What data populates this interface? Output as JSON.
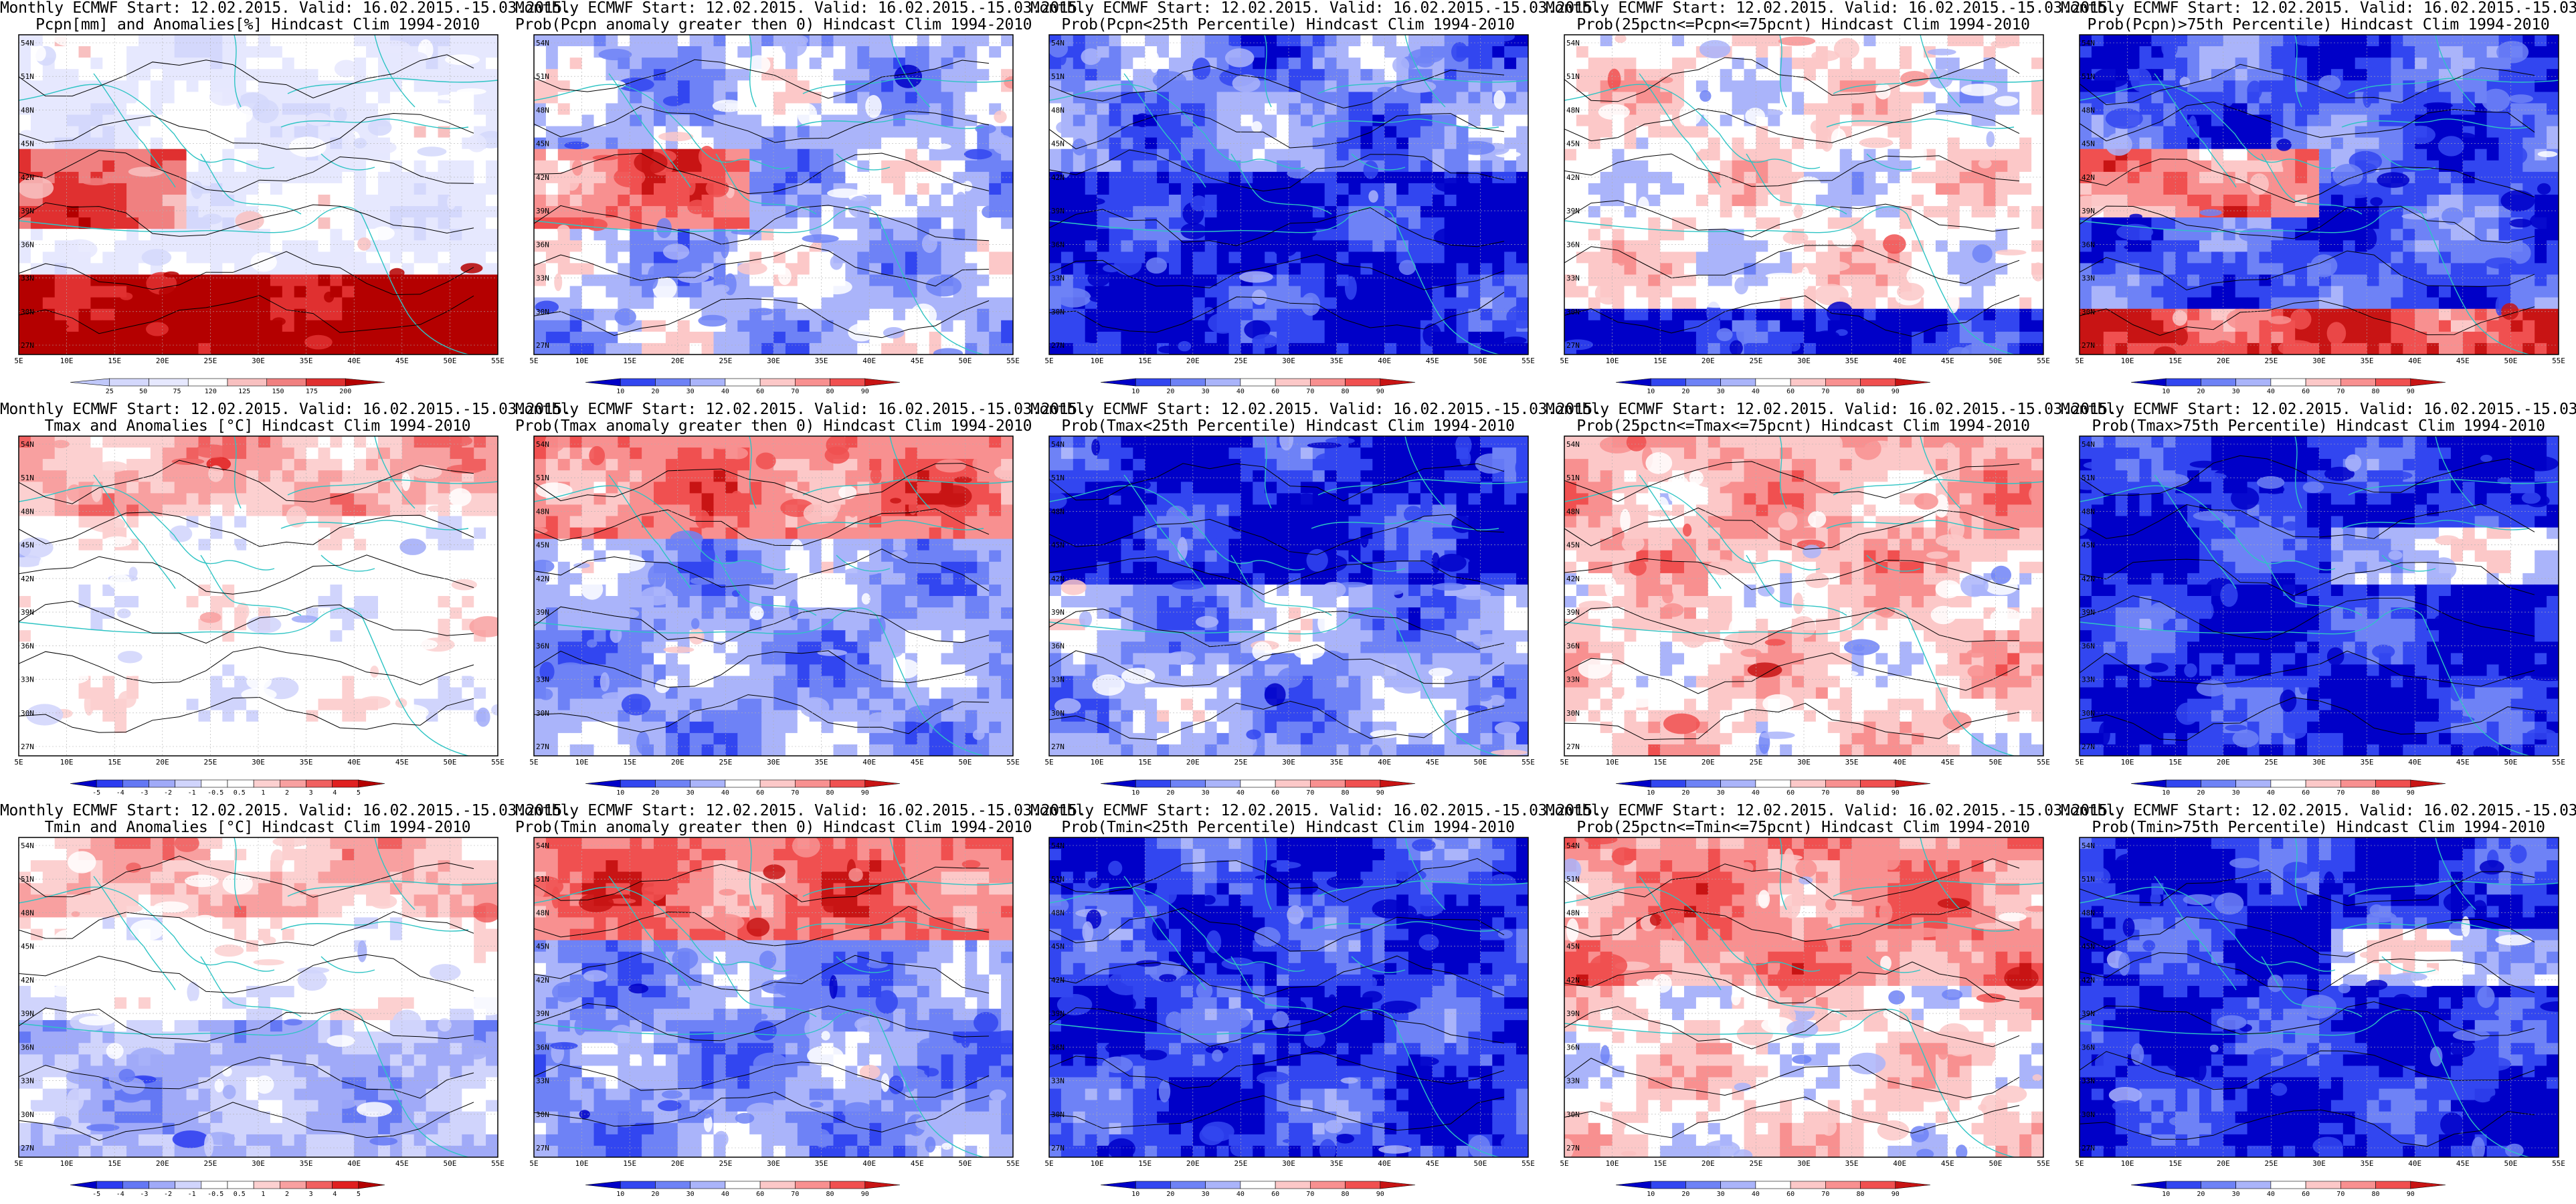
{
  "figure": {
    "header": "Monthly ECMWF Start: 12.02.2015. Valid: 16.02.2015.-15.03.2015.",
    "rows": [
      {
        "variable": "Pcpn",
        "panels": [
          {
            "title": "Pcpn[mm] and Anomalies[%] Hindcast Clim 1994-2010",
            "palette": "pcpn_anom",
            "colorbar": [
              "25",
              "50",
              "75",
              "120",
              "125",
              "150",
              "175",
              "200"
            ]
          },
          {
            "title": "Prob(Pcpn anomaly greater then 0) Hindcast Clim 1994-2010",
            "palette": "prob_pcpn_gt0",
            "colorbar": [
              "10",
              "20",
              "30",
              "40",
              "60",
              "70",
              "80",
              "90"
            ]
          },
          {
            "title": "Prob(Pcpn<25th Percentile) Hindcast Clim 1994-2010",
            "palette": "prob_low",
            "colorbar": [
              "10",
              "20",
              "30",
              "40",
              "60",
              "70",
              "80",
              "90"
            ]
          },
          {
            "title": "Prob(25pctn<=Pcpn<=75pcnt) Hindcast Clim 1994-2010",
            "palette": "prob_mid",
            "colorbar": [
              "10",
              "20",
              "30",
              "40",
              "60",
              "70",
              "80",
              "90"
            ]
          },
          {
            "title": "Prob(Pcpn)>75th Percentile) Hindcast Clim 1994-2010",
            "palette": "prob_high",
            "colorbar": [
              "10",
              "20",
              "30",
              "40",
              "60",
              "70",
              "80",
              "90"
            ]
          }
        ]
      },
      {
        "variable": "Tmax",
        "panels": [
          {
            "title": "Tmax and Anomalies [°C] Hindcast Clim 1994-2010",
            "palette": "t_anom",
            "colorbar": [
              "-5",
              "-4",
              "-3",
              "-2",
              "-1",
              "-0.5",
              "0.5",
              "1",
              "2",
              "3",
              "4",
              "5"
            ]
          },
          {
            "title": "Prob(Tmax anomaly greater then 0) Hindcast Clim 1994-2010",
            "palette": "prob_t_gt0",
            "colorbar": [
              "10",
              "20",
              "30",
              "40",
              "60",
              "70",
              "80",
              "90"
            ]
          },
          {
            "title": "Prob(Tmax<25th Percentile) Hindcast Clim 1994-2010",
            "palette": "prob_low",
            "colorbar": [
              "10",
              "20",
              "30",
              "40",
              "60",
              "70",
              "80",
              "90"
            ]
          },
          {
            "title": "Prob(25pctn<=Tmax<=75pcnt) Hindcast Clim 1994-2010",
            "palette": "prob_mid",
            "colorbar": [
              "10",
              "20",
              "30",
              "40",
              "60",
              "70",
              "80",
              "90"
            ]
          },
          {
            "title": "Prob(Tmax>75th Percentile) Hindcast Clim 1994-2010",
            "palette": "prob_high",
            "colorbar": [
              "10",
              "20",
              "30",
              "40",
              "60",
              "70",
              "80",
              "90"
            ]
          }
        ]
      },
      {
        "variable": "Tmin",
        "panels": [
          {
            "title": "Tmin and Anomalies [°C] Hindcast Clim 1994-2010",
            "palette": "t_anom",
            "colorbar": [
              "-5",
              "-4",
              "-3",
              "-2",
              "-1",
              "-0.5",
              "0.5",
              "1",
              "2",
              "3",
              "4",
              "5"
            ]
          },
          {
            "title": "Prob(Tmin anomaly greater then 0) Hindcast Clim 1994-2010",
            "palette": "prob_t_gt0",
            "colorbar": [
              "10",
              "20",
              "30",
              "40",
              "60",
              "70",
              "80",
              "90"
            ]
          },
          {
            "title": "Prob(Tmin<25th Percentile) Hindcast Clim 1994-2010",
            "palette": "prob_low",
            "colorbar": [
              "10",
              "20",
              "30",
              "40",
              "60",
              "70",
              "80",
              "90"
            ]
          },
          {
            "title": "Prob(25pctn<=Tmin<=75pcnt) Hindcast Clim 1994-2010",
            "palette": "prob_mid",
            "colorbar": [
              "10",
              "20",
              "30",
              "40",
              "60",
              "70",
              "80",
              "90"
            ]
          },
          {
            "title": "Prob(Tmin>75th Percentile) Hindcast Clim 1994-2010",
            "palette": "prob_high",
            "colorbar": [
              "10",
              "20",
              "30",
              "40",
              "60",
              "70",
              "80",
              "90"
            ]
          }
        ]
      }
    ],
    "lon_ticks": [
      "5E",
      "10E",
      "15E",
      "20E",
      "25E",
      "30E",
      "35E",
      "40E",
      "45E",
      "50E",
      "55E"
    ],
    "lat_ticks": [
      "27N",
      "30N",
      "33N",
      "36N",
      "39N",
      "42N",
      "45N",
      "48N",
      "51N",
      "54N"
    ],
    "colors": {
      "coastline": "#2ec4c4",
      "contour": "#000000",
      "ramp_blue_to_red": [
        "#0000c8",
        "#2c3cf0",
        "#6478f4",
        "#a0aaf8",
        "#d0d4fc",
        "#ffffff",
        "#ffffff",
        "#fcd0d0",
        "#f8a0a0",
        "#f06060",
        "#e02020",
        "#b40000"
      ],
      "ramp_prob": [
        "#0000c8",
        "#3246f0",
        "#6e82f6",
        "#aab4fa",
        "#ffffff",
        "#fcc8c8",
        "#f89090",
        "#f05050",
        "#c81414"
      ]
    }
  }
}
